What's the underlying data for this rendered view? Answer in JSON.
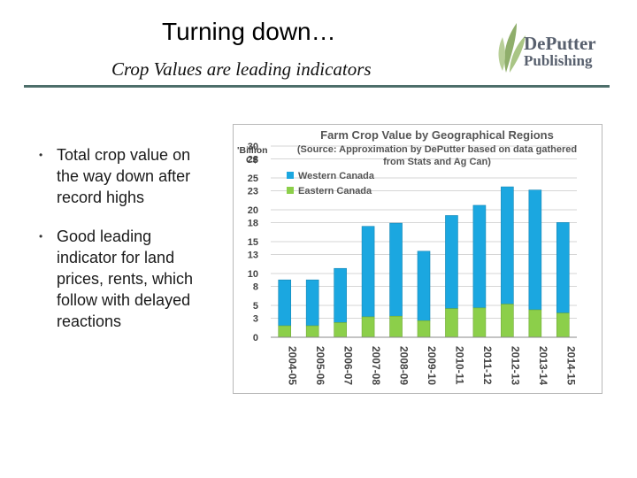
{
  "slide": {
    "title": "Turning down…",
    "subtitle": "Crop Values are leading indicators",
    "bullets": [
      "Total crop value on the way down after record highs",
      "Good leading indicator for land prices, rents, which follow with delayed reactions"
    ]
  },
  "logo": {
    "line1": "DePutter",
    "line2": "Publishing",
    "icon": "wheat-leaves-icon"
  },
  "colors": {
    "western": "#1ba7e0",
    "eastern": "#8ccf4a",
    "grid": "#c8c8c8",
    "title_rule": "#4d6e6a"
  },
  "chart_data": {
    "type": "bar",
    "stacked": true,
    "title": "Farm Crop Value by Geographical Regions",
    "subtitle": "(Source: Approximation by DePutter based on data gathered from Stats and Ag Can)",
    "ylabel": "'Billion C$",
    "ylim": [
      0,
      30
    ],
    "yticks": [
      0,
      3,
      5,
      8,
      10,
      13,
      15,
      18,
      20,
      23,
      25,
      28,
      30
    ],
    "grid": true,
    "legend_position": "top-left",
    "categories": [
      "2004-05",
      "2005-06",
      "2006-07",
      "2007-08",
      "2008-09",
      "2009-10",
      "2010-11",
      "2011-12",
      "2012-13",
      "2013-14",
      "2014-15"
    ],
    "series": [
      {
        "name": "Eastern Canada",
        "values": [
          1.8,
          1.8,
          2.3,
          3.2,
          3.3,
          2.6,
          4.5,
          4.6,
          5.2,
          4.3,
          3.8
        ]
      },
      {
        "name": "Western Canada",
        "values": [
          7.2,
          7.2,
          8.5,
          14.2,
          14.6,
          10.9,
          14.6,
          16.1,
          18.4,
          18.8,
          14.2
        ]
      }
    ]
  }
}
